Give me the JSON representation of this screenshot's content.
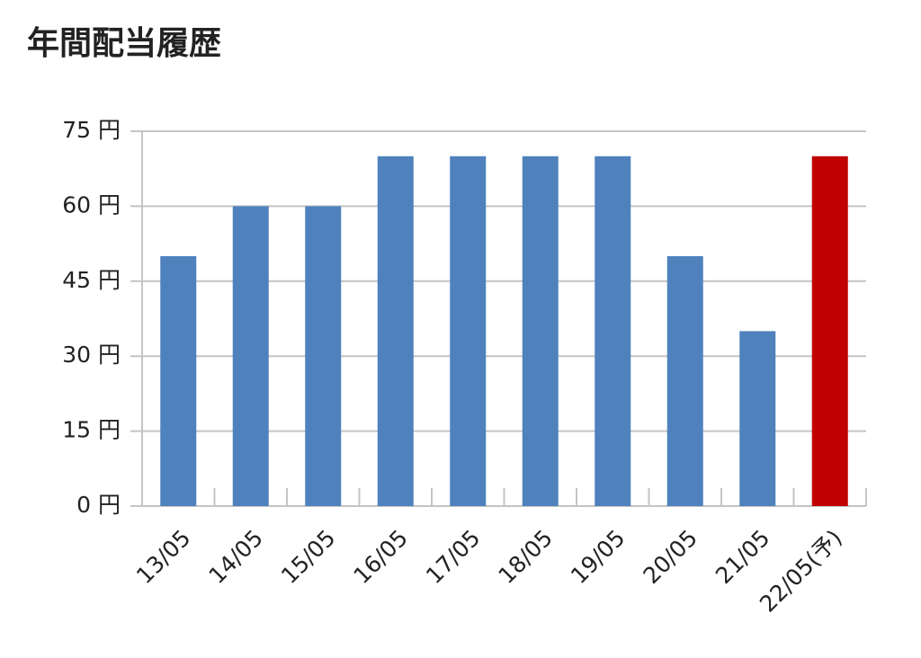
{
  "chart_data": {
    "type": "bar",
    "title": "年間配当履歴",
    "categories": [
      "13/05",
      "14/05",
      "15/05",
      "16/05",
      "17/05",
      "18/05",
      "19/05",
      "20/05",
      "21/05",
      "22/05(予)"
    ],
    "values": [
      50,
      60,
      60,
      70,
      70,
      70,
      70,
      50,
      35,
      70
    ],
    "colors": [
      "#4f81bd",
      "#4f81bd",
      "#4f81bd",
      "#4f81bd",
      "#4f81bd",
      "#4f81bd",
      "#4f81bd",
      "#4f81bd",
      "#4f81bd",
      "#c00000"
    ],
    "ylim": [
      0,
      75
    ],
    "yticks": [
      {
        "value": 0,
        "label": "0 円"
      },
      {
        "value": 15,
        "label": "15 円"
      },
      {
        "value": 30,
        "label": "30 円"
      },
      {
        "value": 45,
        "label": "45 円"
      },
      {
        "value": 60,
        "label": "60 円"
      },
      {
        "value": 75,
        "label": "75 円"
      }
    ],
    "grid": true
  }
}
